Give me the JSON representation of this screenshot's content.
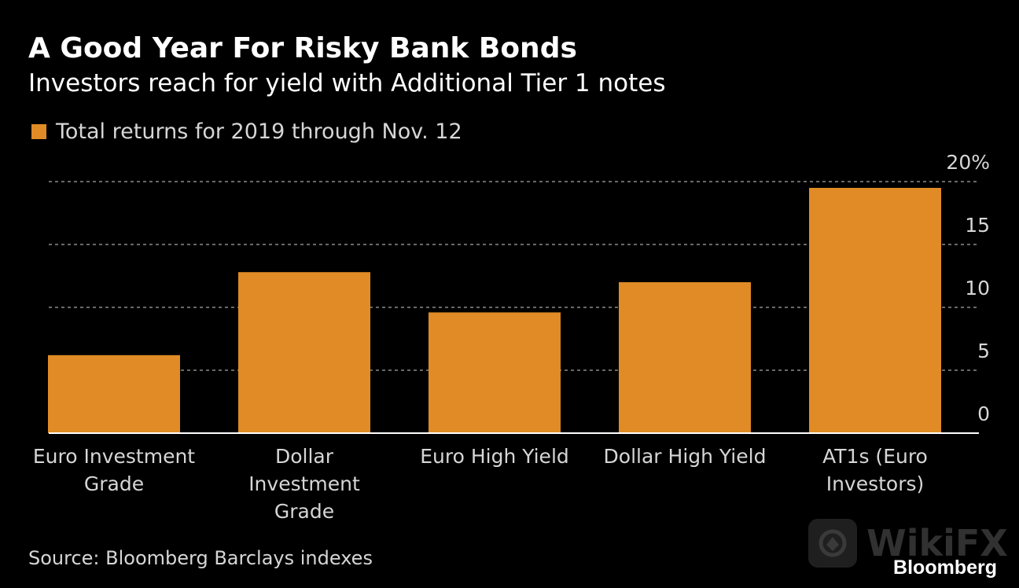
{
  "title": "A Good Year For Risky Bank Bonds",
  "subtitle": "Investors reach for yield with Additional Tier 1 notes",
  "source": "Source: Bloomberg Barclays indexes",
  "brand": "Bloomberg",
  "watermark": "WikiFX",
  "colors": {
    "bar": "#e08b25",
    "background": "#000000",
    "grid": "#8a8a8a",
    "axis": "#ffffff"
  },
  "chart_data": {
    "type": "bar",
    "title": "A Good Year For Risky Bank Bonds",
    "subtitle": "Investors reach for yield with Additional Tier 1 notes",
    "categories": [
      [
        "Euro Investment",
        "Grade"
      ],
      [
        "Dollar",
        "Investment",
        "Grade"
      ],
      [
        "Euro High Yield"
      ],
      [
        "Dollar High Yield"
      ],
      [
        "AT1s (Euro",
        "Investors)"
      ]
    ],
    "series": [
      {
        "name": "Total returns for 2019 through Nov. 12",
        "values": [
          6.2,
          12.8,
          9.6,
          12.0,
          19.5
        ]
      }
    ],
    "ylim": [
      0,
      20
    ],
    "yticks": [
      0,
      5,
      10,
      15,
      20
    ],
    "ytick_labels": [
      "0",
      "5",
      "10",
      "15",
      "20%"
    ],
    "y_axis_position": "right",
    "grid": true,
    "legend_position": "top-left"
  }
}
